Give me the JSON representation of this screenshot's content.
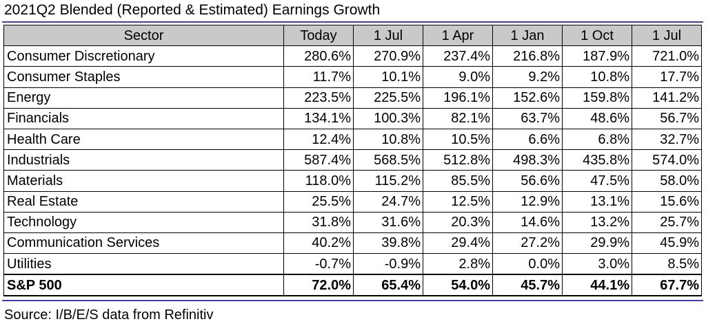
{
  "title": "2021Q2 Blended (Reported & Estimated) Earnings Growth",
  "headers": [
    "Sector",
    "Today",
    "1 Jul",
    "1 Apr",
    "1 Jan",
    "1 Oct",
    "1 Jul"
  ],
  "rows": [
    {
      "sector": "Consumer Discretionary",
      "values": [
        "280.6%",
        "270.9%",
        "237.4%",
        "216.8%",
        "187.9%",
        "721.0%"
      ]
    },
    {
      "sector": "Consumer Staples",
      "values": [
        "11.7%",
        "10.1%",
        "9.0%",
        "9.2%",
        "10.8%",
        "17.7%"
      ]
    },
    {
      "sector": "Energy",
      "values": [
        "223.5%",
        "225.5%",
        "196.1%",
        "152.6%",
        "159.8%",
        "141.2%"
      ]
    },
    {
      "sector": "Financials",
      "values": [
        "134.1%",
        "100.3%",
        "82.1%",
        "63.7%",
        "48.6%",
        "56.7%"
      ]
    },
    {
      "sector": "Health Care",
      "values": [
        "12.4%",
        "10.8%",
        "10.5%",
        "6.6%",
        "6.8%",
        "32.7%"
      ]
    },
    {
      "sector": "Industrials",
      "values": [
        "587.4%",
        "568.5%",
        "512.8%",
        "498.3%",
        "435.8%",
        "574.0%"
      ]
    },
    {
      "sector": "Materials",
      "values": [
        "118.0%",
        "115.2%",
        "85.5%",
        "56.6%",
        "47.5%",
        "58.0%"
      ]
    },
    {
      "sector": "Real Estate",
      "values": [
        "25.5%",
        "24.7%",
        "12.5%",
        "12.9%",
        "13.1%",
        "15.6%"
      ]
    },
    {
      "sector": "Technology",
      "values": [
        "31.8%",
        "31.6%",
        "20.3%",
        "14.6%",
        "13.2%",
        "25.7%"
      ]
    },
    {
      "sector": "Communication Services",
      "values": [
        "40.2%",
        "39.8%",
        "29.4%",
        "27.2%",
        "29.9%",
        "45.9%"
      ]
    },
    {
      "sector": "Utilities",
      "values": [
        "-0.7%",
        "-0.9%",
        "2.8%",
        "0.0%",
        "3.0%",
        "8.5%"
      ]
    }
  ],
  "total": {
    "sector": "S&P 500",
    "values": [
      "72.0%",
      "65.4%",
      "54.0%",
      "45.7%",
      "44.1%",
      "67.7%"
    ]
  },
  "source": "Source: I/B/E/S data from Refinitiv",
  "colors": {
    "header_bg": "#c9c9c9",
    "rule": "#3b3fbf"
  }
}
